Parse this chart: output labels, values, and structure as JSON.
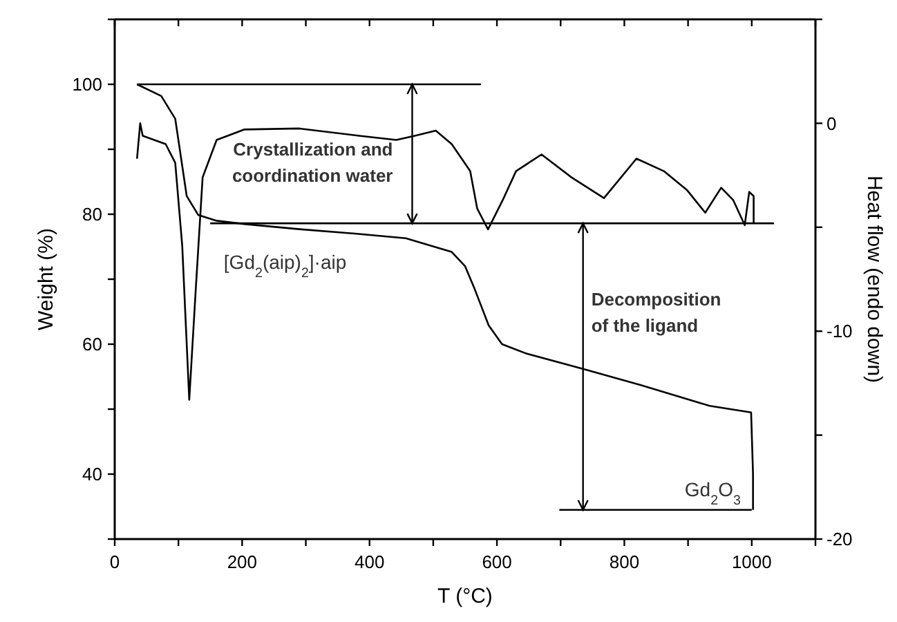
{
  "chart_data": {
    "type": "line",
    "xlabel": "T (°C)",
    "ylabel": "Weight (%)",
    "y2label": "Heat flow (endo down)",
    "xlim": [
      0,
      1100
    ],
    "xticks": [
      0,
      {
        "value": 100,
        "label": null
      },
      200,
      {
        "value": 300,
        "label": null
      },
      400,
      {
        "value": 500,
        "label": null
      },
      600,
      {
        "value": 700,
        "label": null
      },
      800,
      {
        "value": 900,
        "label": null
      },
      1000,
      {
        "value": 1100,
        "label": null
      }
    ],
    "ylim": [
      30,
      110
    ],
    "yticks": [
      {
        "value": 30,
        "label": null
      },
      40,
      {
        "value": 50,
        "label": null
      },
      60,
      {
        "value": 70,
        "label": null
      },
      80,
      {
        "value": 90,
        "label": null
      },
      100,
      {
        "value": 110,
        "label": null
      }
    ],
    "y2lim": [
      -20,
      5
    ],
    "y2ticks": [
      -20,
      {
        "value": -15,
        "label": null
      },
      -10,
      {
        "value": -5,
        "label": null
      },
      0,
      {
        "value": 5,
        "label": null
      }
    ],
    "grid": false,
    "marker": "none",
    "line_style": "solid",
    "series": [
      {
        "color": "#000000",
        "x": [
          35,
          73,
          95,
          113,
          131,
          160,
          203,
          290,
          380,
          457,
          529,
          550,
          565,
          587,
          608,
          645,
          735,
          826,
          934,
          999,
          1002,
          1002
        ],
        "values": [
          100,
          98.2,
          94.7,
          82.8,
          79.9,
          79,
          78.5,
          77.7,
          77,
          76.3,
          74.2,
          72,
          68.5,
          62.9,
          60,
          58.6,
          56.2,
          53.7,
          50.5,
          49.5,
          40,
          34.5
        ]
      },
      {
        "color": "#000000",
        "axis": "y2",
        "x": [
          35,
          40,
          44,
          80,
          95,
          106,
          117,
          127,
          138,
          160,
          203,
          290,
          384,
          442,
          471,
          504,
          529,
          558,
          569,
          586,
          609,
          630,
          670,
          717,
          768,
          819,
          862,
          898,
          927,
          952,
          971,
          989,
          996,
          1003,
          1003
        ],
        "values": [
          -1.7,
          0,
          -0.6,
          -1,
          -1.9,
          -5.9,
          -13.3,
          -8.1,
          -2.6,
          -0.8,
          -0.3,
          -0.25,
          -0.6,
          -0.8,
          -0.6,
          -0.35,
          -1,
          -2.3,
          -4.1,
          -5.1,
          -3.7,
          -2.3,
          -1.5,
          -2.6,
          -3.6,
          -1.7,
          -2.3,
          -3.2,
          -4.3,
          -3.1,
          -3.7,
          -4.9,
          -3.3,
          -3.5,
          -4.8
        ]
      },
      {
        "color": "#000000",
        "x": [
          35,
          575
        ],
        "values": [
          100,
          100
        ]
      },
      {
        "color": "#000000",
        "x": [
          150,
          1035
        ],
        "values": [
          78.6,
          78.6
        ]
      },
      {
        "color": "#000000",
        "x": [
          698,
          1000
        ],
        "values": [
          34.5,
          34.5
        ]
      }
    ],
    "annotations": [
      "Crystallization and coordination water",
      "Decomposition of the ligand",
      "[Gd$_{2}$(aip)$_{2}$]·aip",
      "Gd$_{2}$O$_{3}$"
    ]
  }
}
